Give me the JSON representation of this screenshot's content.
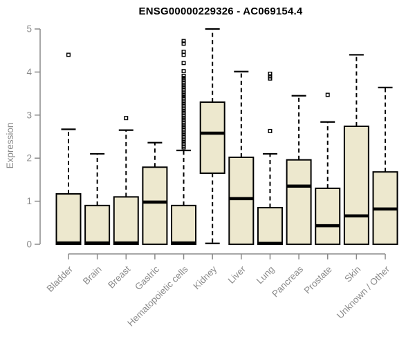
{
  "chart_data": {
    "type": "box",
    "title": "ENSG00000229326 - AC069154.4",
    "ylabel": "Expression",
    "xlabel": "",
    "ylim": [
      0,
      5
    ],
    "yticks": [
      0,
      1,
      2,
      3,
      4,
      5
    ],
    "grid": false,
    "legend": "none",
    "categories": [
      "Bladder",
      "Brain",
      "Breast",
      "Gastric",
      "Hematopoietic cells",
      "Kidney",
      "Liver",
      "Lung",
      "Pancreas",
      "Prostate",
      "Skin",
      "Unknown / Other"
    ],
    "boxes": [
      {
        "category": "Bladder",
        "whisker_low": 0,
        "q1": 0,
        "median": 0.03,
        "q3": 1.17,
        "whisker_high": 2.67,
        "outliers": [
          4.4
        ]
      },
      {
        "category": "Brain",
        "whisker_low": 0,
        "q1": 0,
        "median": 0.03,
        "q3": 0.9,
        "whisker_high": 2.1,
        "outliers": []
      },
      {
        "category": "Breast",
        "whisker_low": 0,
        "q1": 0,
        "median": 0.03,
        "q3": 1.1,
        "whisker_high": 2.65,
        "outliers": [
          2.93
        ]
      },
      {
        "category": "Gastric",
        "whisker_low": 0,
        "q1": 0,
        "median": 0.98,
        "q3": 1.79,
        "whisker_high": 2.36,
        "outliers": []
      },
      {
        "category": "Hematopoietic cells",
        "whisker_low": 0,
        "q1": 0,
        "median": 0.03,
        "q3": 0.9,
        "whisker_high": 2.18,
        "outliers": [
          2.25,
          2.29,
          2.33,
          2.37,
          2.41,
          2.45,
          2.49,
          2.53,
          2.57,
          2.61,
          2.65,
          2.69,
          2.73,
          2.77,
          2.81,
          2.85,
          2.89,
          2.93,
          2.97,
          3.01,
          3.05,
          3.09,
          3.13,
          3.17,
          3.21,
          3.25,
          3.29,
          3.33,
          3.37,
          3.41,
          3.46,
          3.5,
          3.54,
          3.58,
          3.62,
          3.66,
          3.7,
          3.74,
          3.78,
          3.82,
          3.86,
          3.91,
          4.02,
          4.21,
          4.4,
          4.47,
          4.66,
          4.72
        ]
      },
      {
        "category": "Kidney",
        "whisker_low": 0.02,
        "q1": 1.65,
        "median": 2.58,
        "q3": 3.3,
        "whisker_high": 5.0,
        "outliers": []
      },
      {
        "category": "Liver",
        "whisker_low": 0,
        "q1": 0,
        "median": 1.06,
        "q3": 2.02,
        "whisker_high": 4.01,
        "outliers": []
      },
      {
        "category": "Lung",
        "whisker_low": 0,
        "q1": 0,
        "median": 0.02,
        "q3": 0.85,
        "whisker_high": 2.1,
        "outliers": [
          2.63,
          3.85,
          3.9,
          3.96
        ]
      },
      {
        "category": "Pancreas",
        "whisker_low": 0,
        "q1": 0,
        "median": 1.35,
        "q3": 1.96,
        "whisker_high": 3.45,
        "outliers": []
      },
      {
        "category": "Prostate",
        "whisker_low": 0,
        "q1": 0,
        "median": 0.43,
        "q3": 1.3,
        "whisker_high": 2.84,
        "outliers": [
          3.47
        ]
      },
      {
        "category": "Skin",
        "whisker_low": 0,
        "q1": 0,
        "median": 0.66,
        "q3": 2.74,
        "whisker_high": 4.4,
        "outliers": []
      },
      {
        "category": "Unknown / Other",
        "whisker_low": 0,
        "q1": 0,
        "median": 0.82,
        "q3": 1.68,
        "whisker_high": 3.64,
        "outliers": []
      }
    ],
    "colors": {
      "background": "#ffffff",
      "box_fill": "#EDE8CE",
      "box_border": "#000000",
      "median": "#000000",
      "whisker": "#000000",
      "outlier": "#000000",
      "axis": "#8a8a8a",
      "tick_label": "#8a8a8a",
      "title": "#000000"
    }
  }
}
